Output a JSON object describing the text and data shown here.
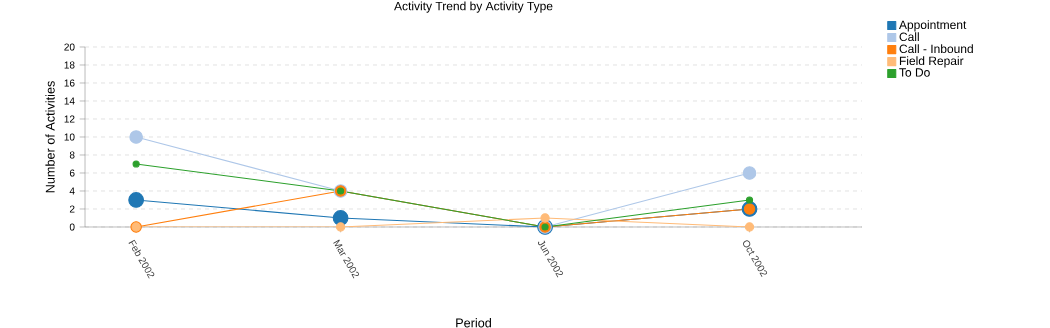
{
  "chart_data": {
    "type": "line",
    "title": "Activity Trend by Activity Type",
    "xlabel": "Period",
    "ylabel": "Number of Activities",
    "categories": [
      "Feb 2002",
      "Mar 2002",
      "Jun 2002",
      "Oct 2002"
    ],
    "series": [
      {
        "name": "Appointment",
        "color": "#1f77b4",
        "values": [
          3,
          1,
          0,
          2
        ]
      },
      {
        "name": "Call",
        "color": "#aec7e8",
        "values": [
          10,
          4,
          0,
          6
        ]
      },
      {
        "name": "Call - Inbound",
        "color": "#ff7f0e",
        "values": [
          0,
          4,
          0,
          2
        ]
      },
      {
        "name": "Field Repair",
        "color": "#ffbb78",
        "values": [
          0,
          0,
          1,
          0
        ]
      },
      {
        "name": "To Do",
        "color": "#2ca02c",
        "values": [
          7,
          4,
          0,
          3
        ]
      }
    ],
    "ylim": [
      0,
      20
    ],
    "yticks": [
      0,
      2,
      4,
      6,
      8,
      10,
      12,
      14,
      16,
      18,
      20
    ],
    "grid": "y",
    "legend": "top right",
    "marker": "circle",
    "line_style": "solid"
  }
}
